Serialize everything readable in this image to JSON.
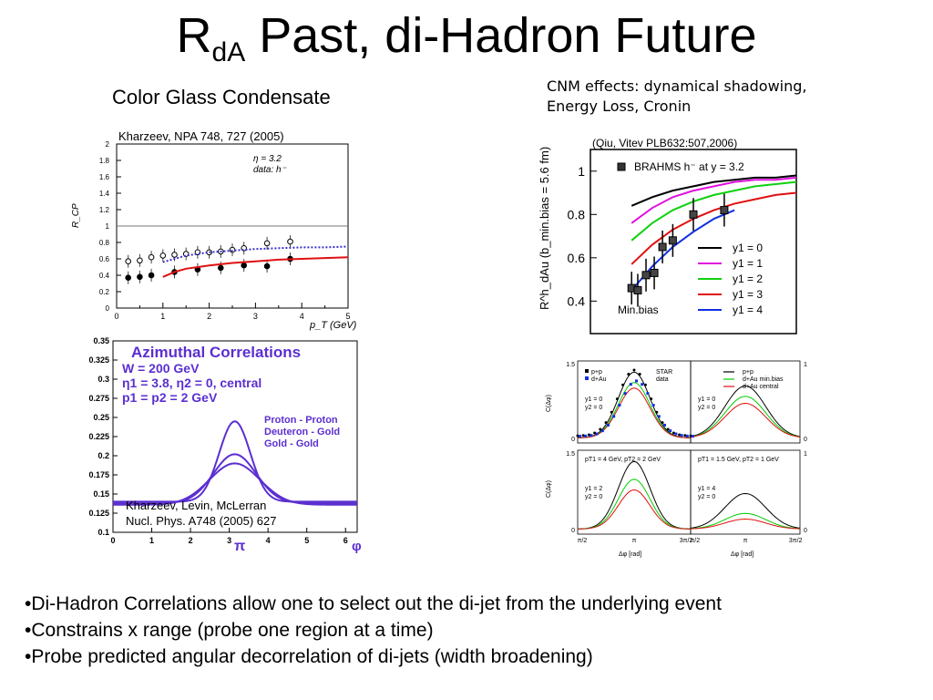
{
  "slide": {
    "title_main": "R",
    "title_sub": "dA",
    "title_rest": " Past, di-Hadron Future",
    "subtitle_left": "Color Glass Condensate",
    "cnm_line1": "CNM effects: dynamical shadowing,",
    "cnm_line2": "Energy Loss, Cronin",
    "cite_kharzeev": "Kharzeev, NPA 748, 727 (2005)",
    "cite_qiu": "(Qiu, Vitev PLB632:507,2006)",
    "cite_klm1": "Kharzeev, Levin, McLerran",
    "cite_klm2": "Nucl. Phys. A748 (2005) 627",
    "bullets": [
      "•Di-Hadron Correlations allow one to select out the di-jet from the underlying event",
      "•Constrains x range (probe one region at a time)",
      "•Probe predicted angular decorrelation of di-jets (width broadening)"
    ]
  },
  "chart_data": [
    {
      "type": "scatter",
      "panel": "rcp",
      "xlabel": "p_T (GeV)",
      "ylabel": "R_CP",
      "xlim": [
        0,
        5
      ],
      "ylim": [
        0,
        2
      ],
      "xticks": [
        "0",
        "0.5",
        "1",
        "1.5",
        "2",
        "2.5",
        "3",
        "3.5",
        "4",
        "4.5",
        "5"
      ],
      "yticks": [
        "0",
        "0.2",
        "0.4",
        "0.6",
        "0.8",
        "1",
        "1.2",
        "1.4",
        "1.6",
        "1.8",
        "2"
      ],
      "annotation_line1": "η = 3.2",
      "annotation_line2": "data: h⁻",
      "reference_line": 1,
      "series": [
        {
          "marker": "open",
          "x": [
            0.25,
            0.5,
            0.75,
            1.0,
            1.25,
            1.5,
            1.75,
            2.0,
            2.25,
            2.5,
            2.75,
            3.25,
            3.75
          ],
          "y": [
            0.57,
            0.58,
            0.62,
            0.64,
            0.65,
            0.66,
            0.68,
            0.68,
            0.69,
            0.71,
            0.73,
            0.79,
            0.81
          ]
        },
        {
          "marker": "filled",
          "x": [
            0.25,
            0.5,
            0.75,
            1.25,
            1.75,
            2.25,
            2.75,
            3.25,
            3.75
          ],
          "y": [
            0.37,
            0.38,
            0.4,
            0.44,
            0.47,
            0.49,
            0.52,
            0.51,
            0.6
          ]
        },
        {
          "style": "dotted",
          "color": "#3a2fd0",
          "x": [
            1.0,
            1.5,
            2.0,
            2.5,
            3.0,
            3.5,
            4.0,
            4.5,
            5.0
          ],
          "y": [
            0.56,
            0.64,
            0.68,
            0.7,
            0.72,
            0.73,
            0.74,
            0.74,
            0.75
          ]
        },
        {
          "style": "solid",
          "color": "#e01010",
          "x": [
            1.0,
            1.25,
            1.5,
            2.0,
            2.5,
            3.0,
            3.5,
            4.0,
            4.5,
            5.0
          ],
          "y": [
            0.38,
            0.44,
            0.48,
            0.52,
            0.55,
            0.57,
            0.59,
            0.6,
            0.61,
            0.62
          ]
        }
      ]
    },
    {
      "type": "line",
      "panel": "azimuthal",
      "title": "Azimuthal Correlations",
      "params": [
        "W = 200 GeV",
        "η1 = 3.8, η2 = 0, central",
        "p1 = p2 = 2 GeV"
      ],
      "xlim": [
        0,
        6.3
      ],
      "ylim": [
        0.1,
        0.35
      ],
      "xticks": [
        "0",
        "1",
        "2",
        "3",
        "4",
        "5",
        "6"
      ],
      "yticks": [
        "0.1",
        "0.125",
        "0.15",
        "0.175",
        "0.2",
        "0.225",
        "0.25",
        "0.275",
        "0.3",
        "0.325",
        "0.35"
      ],
      "xlabel_pi": "π",
      "xlabel_phi": "φ",
      "series": [
        {
          "name": "Proton - Proton",
          "base": 0.14,
          "peak": 0.245,
          "sigma": 0.4
        },
        {
          "name": "Deuteron - Gold",
          "base": 0.138,
          "peak": 0.202,
          "sigma": 0.55
        },
        {
          "name": "Gold - Gold",
          "base": 0.136,
          "peak": 0.19,
          "sigma": 0.65
        }
      ]
    },
    {
      "type": "line",
      "panel": "rdau",
      "xlim": [
        0,
        5
      ],
      "ylim": [
        0.25,
        1.1
      ],
      "yticks": [
        "0.4",
        "0.6",
        "0.8",
        "1"
      ],
      "ylabel": "R^h_dAu (b_min.bias = 5.6 fm)",
      "legend_data": "BRAHMS h⁻ at y = 3.2",
      "label": "Min.bias",
      "series": [
        {
          "name": "y1 = 0",
          "color": "#000000",
          "x": [
            1.0,
            1.5,
            2.0,
            2.5,
            3.0,
            3.5,
            4.0,
            4.5,
            5.0
          ],
          "y": [
            0.84,
            0.88,
            0.91,
            0.93,
            0.95,
            0.96,
            0.97,
            0.97,
            0.98
          ]
        },
        {
          "name": "y1 = 1",
          "color": "#e010e0",
          "x": [
            1.0,
            1.5,
            2.0,
            2.5,
            3.0,
            3.5,
            4.0,
            4.5,
            5.0
          ],
          "y": [
            0.76,
            0.83,
            0.88,
            0.91,
            0.93,
            0.95,
            0.96,
            0.96,
            0.97
          ]
        },
        {
          "name": "y1 = 2",
          "color": "#10d010",
          "x": [
            1.0,
            1.5,
            2.0,
            2.5,
            3.0,
            3.5,
            4.0,
            4.5,
            5.0
          ],
          "y": [
            0.68,
            0.76,
            0.82,
            0.86,
            0.89,
            0.91,
            0.93,
            0.94,
            0.95
          ]
        },
        {
          "name": "y1 = 3",
          "color": "#e01010",
          "x": [
            1.0,
            1.5,
            2.0,
            2.5,
            3.0,
            3.5,
            4.0,
            4.5,
            5.0
          ],
          "y": [
            0.57,
            0.66,
            0.73,
            0.78,
            0.82,
            0.85,
            0.87,
            0.89,
            0.9
          ]
        },
        {
          "name": "y1 = 4",
          "color": "#1030e0",
          "x": [
            1.0,
            1.5,
            2.0,
            2.5,
            3.0,
            3.5
          ],
          "y": [
            0.45,
            0.56,
            0.65,
            0.72,
            0.78,
            0.82
          ]
        }
      ],
      "data_points": {
        "x": [
          1.0,
          1.15,
          1.35,
          1.55,
          1.75,
          2.0,
          2.5,
          3.25
        ],
        "y": [
          0.46,
          0.45,
          0.52,
          0.53,
          0.65,
          0.68,
          0.8,
          0.82
        ]
      }
    },
    {
      "type": "line",
      "panel": "star",
      "subpanels": [
        {
          "label1": "y1 = 0",
          "label2": "y2 = 0",
          "legend": [
            "p+p",
            "d+Au"
          ],
          "note": [
            "STAR",
            "data"
          ],
          "scale": "1.5"
        },
        {
          "label1": "y1 = 0",
          "label2": "y2 = 0",
          "legend": [
            "p+p",
            "d+Au min.bias",
            "d+Au central"
          ],
          "scale": "1"
        },
        {
          "label1": "y1 = 2",
          "label2": "y2 = 0",
          "header": "pT1 = 4 GeV, pT2 = 2 GeV",
          "scale": "1.5"
        },
        {
          "label1": "y1 = 4",
          "label2": "y2 = 0",
          "header": "pT1 = 1.5 GeV, pT2 = 1 GeV",
          "scale": "1"
        }
      ],
      "ylabel": "C(Δφ)",
      "xlabel": "Δφ [rad]",
      "xticks": [
        "π/2",
        "π",
        "3π/2"
      ],
      "peaks": [
        {
          "black": 0.95,
          "green": 0.8,
          "red": 0.72
        },
        {
          "black": 0.75,
          "green": 0.6,
          "red": 0.5
        },
        {
          "black": 0.95,
          "green": 0.7,
          "red": 0.55
        },
        {
          "black": 0.5,
          "green": 0.22,
          "red": 0.14
        }
      ]
    }
  ]
}
